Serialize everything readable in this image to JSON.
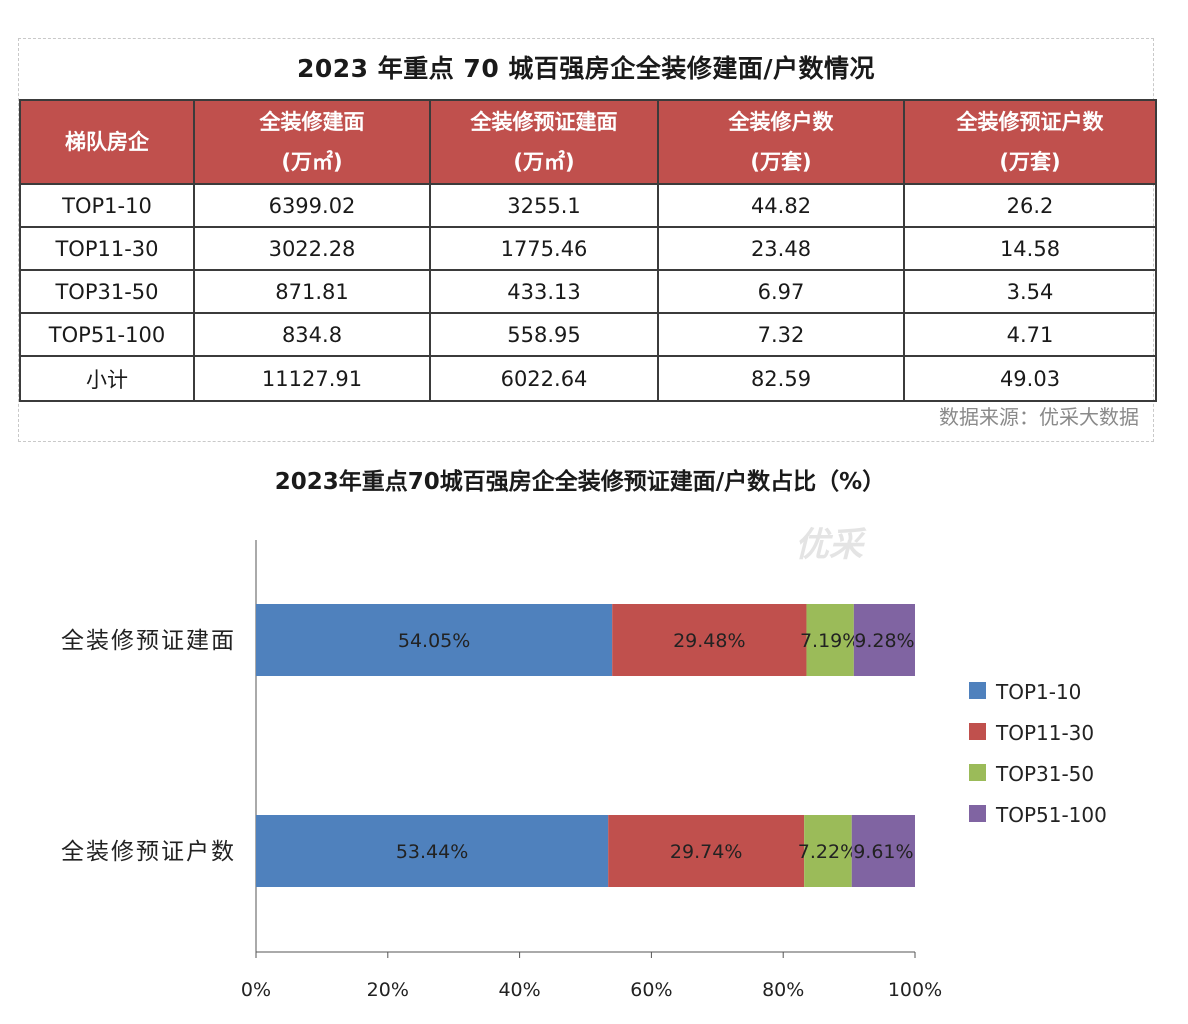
{
  "table": {
    "title": "2023 年重点 70 城百强房企全装修建面/户数情况",
    "headers": [
      [
        "梯队房企"
      ],
      [
        "全装修建面",
        "(万㎡)"
      ],
      [
        "全装修预证建面",
        "(万㎡)"
      ],
      [
        "全装修户数",
        "(万套)"
      ],
      [
        "全装修预证户数",
        "(万套)"
      ]
    ],
    "rows": [
      [
        "TOP1-10",
        "6399.02",
        "3255.1",
        "44.82",
        "26.2"
      ],
      [
        "TOP11-30",
        "3022.28",
        "1775.46",
        "23.48",
        "14.58"
      ],
      [
        "TOP31-50",
        "871.81",
        "433.13",
        "6.97",
        "3.54"
      ],
      [
        "TOP51-100",
        "834.8",
        "558.95",
        "7.32",
        "4.71"
      ],
      [
        "小计",
        "11127.91",
        "6022.64",
        "82.59",
        "49.03"
      ]
    ],
    "source": "数据来源：优采大数据",
    "header_color": "#c0504d"
  },
  "watermark": "优采",
  "chart_data": {
    "type": "bar",
    "orientation": "horizontal",
    "stacked": "percent",
    "title": "2023年重点70城百强房企全装修预证建面/户数占比（%）",
    "categories": [
      "全装修预证建面",
      "全装修预证户数"
    ],
    "series": [
      {
        "name": "TOP1-10",
        "values": [
          54.05,
          53.44
        ],
        "labels": [
          "54.05%",
          "53.44%"
        ],
        "color": "#4f81bd"
      },
      {
        "name": "TOP11-30",
        "values": [
          29.48,
          29.74
        ],
        "labels": [
          "29.48%",
          "29.74%"
        ],
        "color": "#c0504d"
      },
      {
        "name": "TOP31-50",
        "values": [
          7.19,
          7.22
        ],
        "labels": [
          "7.19%",
          "7.22%"
        ],
        "color": "#9bbb59"
      },
      {
        "name": "TOP51-100",
        "values": [
          9.28,
          9.61
        ],
        "labels": [
          "9.28%",
          "9.61%"
        ],
        "color": "#8064a2"
      }
    ],
    "xlim": [
      0,
      100
    ],
    "xticks": [
      "0%",
      "20%",
      "40%",
      "60%",
      "80%",
      "100%"
    ],
    "legend": "right",
    "grid": false
  }
}
